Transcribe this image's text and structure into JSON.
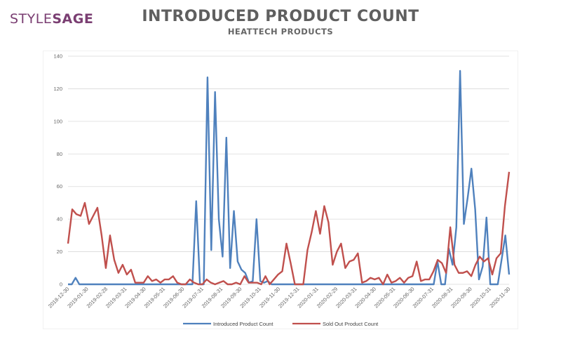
{
  "brand": {
    "logo_part1": "STYLE",
    "logo_part2": "SAGE"
  },
  "header": {
    "title": "INTRODUCED PRODUCT COUNT",
    "subtitle": "HEATTECH PRODUCTS"
  },
  "colors": {
    "series1": "#4f81bd",
    "series2": "#c0504d",
    "grid": "#d9d9d9",
    "brand": "#7a3e72"
  },
  "chart_data": {
    "type": "line",
    "title": "INTRODUCED PRODUCT COUNT",
    "subtitle": "HEATTECH PRODUCTS",
    "xlabel": "",
    "ylabel": "",
    "ylim": [
      0,
      140
    ],
    "yticks": [
      0,
      20,
      40,
      60,
      80,
      100,
      120,
      140
    ],
    "grid": true,
    "legend": "bottom",
    "x_tick_labels": [
      "2018-12-30",
      "2019-01-30",
      "2019-02-28",
      "2019-03-31",
      "2019-04-30",
      "2019-05-31",
      "2019-06-30",
      "2019-07-31",
      "2019-08-31",
      "2019-09-30",
      "2019-10-31",
      "2019-11-30",
      "2019-12-31",
      "2020-01-31",
      "2020-02-29",
      "2020-03-31",
      "2020-04-30",
      "2020-05-31",
      "2020-06-30",
      "2020-07-31",
      "2020-08-31",
      "2020-09-30",
      "2020-10-31",
      "2020-11-30"
    ],
    "series": [
      {
        "name": "Introduced Product Count",
        "color": "#4f81bd",
        "values": [
          0,
          0,
          4,
          0,
          0,
          0,
          0,
          0,
          0,
          0,
          0,
          0,
          0,
          0,
          0,
          0,
          0,
          0,
          0,
          0,
          0,
          0,
          0,
          0,
          0,
          0,
          0,
          0,
          0,
          0,
          0,
          0,
          0,
          0,
          51,
          0,
          0,
          127,
          21,
          118,
          40,
          17,
          90,
          10,
          45,
          14,
          9,
          7,
          1,
          2,
          40,
          2,
          1,
          2,
          0,
          0,
          0,
          0,
          0,
          0,
          0,
          0,
          0,
          0,
          0,
          0,
          0,
          0,
          0,
          0,
          0,
          0,
          0,
          0,
          0,
          0,
          0,
          0,
          0,
          0,
          0,
          0,
          0,
          0,
          0,
          0,
          0,
          0,
          0,
          0,
          0,
          0,
          0,
          0,
          0,
          0,
          0,
          0,
          14,
          0,
          0,
          22,
          12,
          35,
          131,
          37,
          53,
          71,
          46,
          3,
          11,
          41,
          0,
          0,
          0,
          15,
          30,
          6
        ]
      },
      {
        "name": "Sold Out Product Count",
        "color": "#c0504d",
        "values": [
          25,
          46,
          43,
          42,
          50,
          37,
          42,
          47,
          30,
          10,
          30,
          15,
          7,
          12,
          6,
          9,
          1,
          1,
          1,
          5,
          2,
          3,
          1,
          3,
          3,
          5,
          1,
          0,
          0,
          3,
          1,
          0,
          0,
          3,
          1,
          0,
          1,
          2,
          0,
          0,
          1,
          0,
          5,
          1,
          1,
          1,
          0,
          5,
          0,
          3,
          6,
          8,
          25,
          13,
          0,
          0,
          0,
          21,
          32,
          45,
          31,
          48,
          38,
          12,
          20,
          25,
          10,
          14,
          15,
          19,
          1,
          2,
          4,
          3,
          4,
          0,
          6,
          1,
          2,
          4,
          1,
          4,
          5,
          14,
          2,
          3,
          3,
          8,
          15,
          13,
          7,
          35,
          12,
          7,
          7,
          8,
          5,
          12,
          17,
          14,
          16,
          6,
          16,
          19,
          48,
          69
        ]
      }
    ]
  },
  "legend": {
    "item1": "Introduced Product Count",
    "item2": "Sold Out Product Count"
  }
}
